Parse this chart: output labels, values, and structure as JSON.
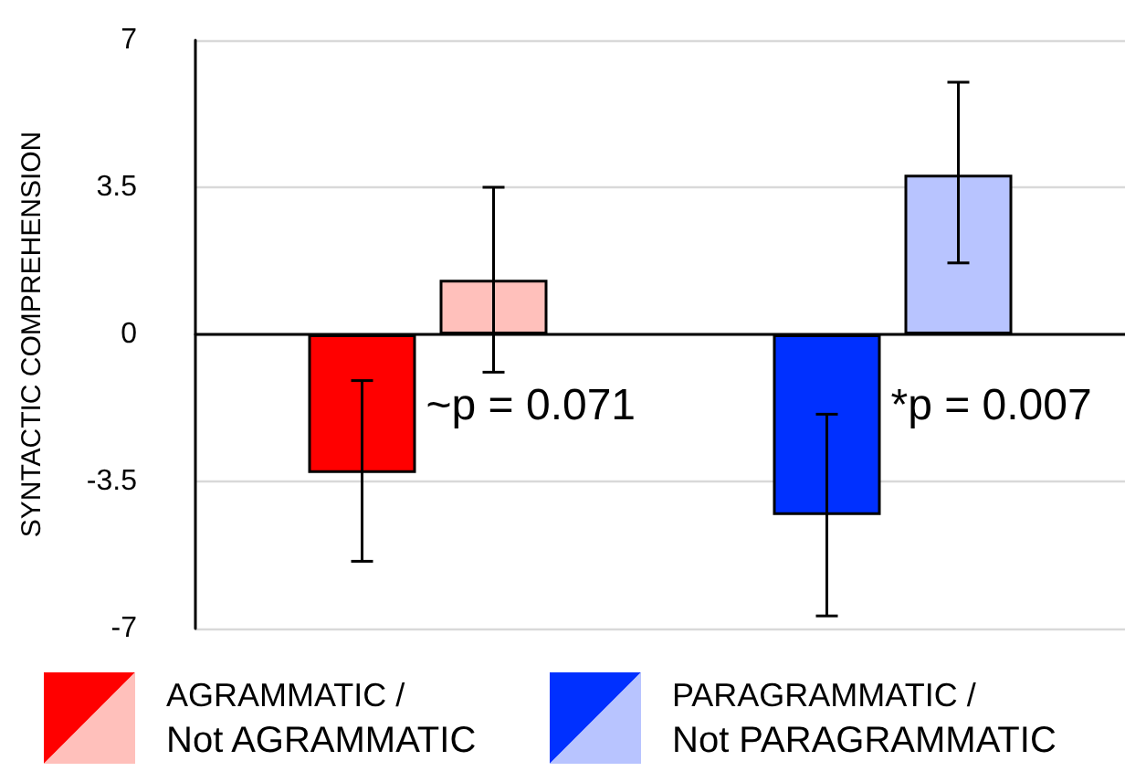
{
  "chart_data": {
    "type": "bar",
    "ylabel": "SYNTACTIC COMPREHENSION",
    "categories": [
      null,
      null
    ],
    "ylim": [
      -7,
      7
    ],
    "yticks": [
      -7,
      -3.5,
      0,
      3.5,
      7
    ],
    "grid": "y",
    "legend": "bottom",
    "series": [
      {
        "name": "AGRAMMATIC /",
        "color": "#ff0000",
        "values": [
          -3.3,
          null
        ],
        "errors": [
          [
            -5.4,
            -1.1
          ],
          null
        ]
      },
      {
        "name": "Not AGRAMMATIC",
        "color": "#ffc0bb",
        "values": [
          1.3,
          null
        ],
        "errors": [
          [
            -0.9,
            3.5
          ],
          null
        ]
      },
      {
        "name": "PARAGRAMMATIC /",
        "color": "#0030ff",
        "values": [
          null,
          -4.3
        ],
        "errors": [
          null,
          [
            -6.7,
            -1.9
          ]
        ]
      },
      {
        "name": "Not PARAGRAMMATIC",
        "color": "#b8c4ff",
        "values": [
          null,
          3.8
        ],
        "errors": [
          null,
          [
            1.7,
            6.0
          ]
        ]
      }
    ],
    "annotations": [
      "~p = 0.071",
      "*p = 0.007"
    ]
  }
}
